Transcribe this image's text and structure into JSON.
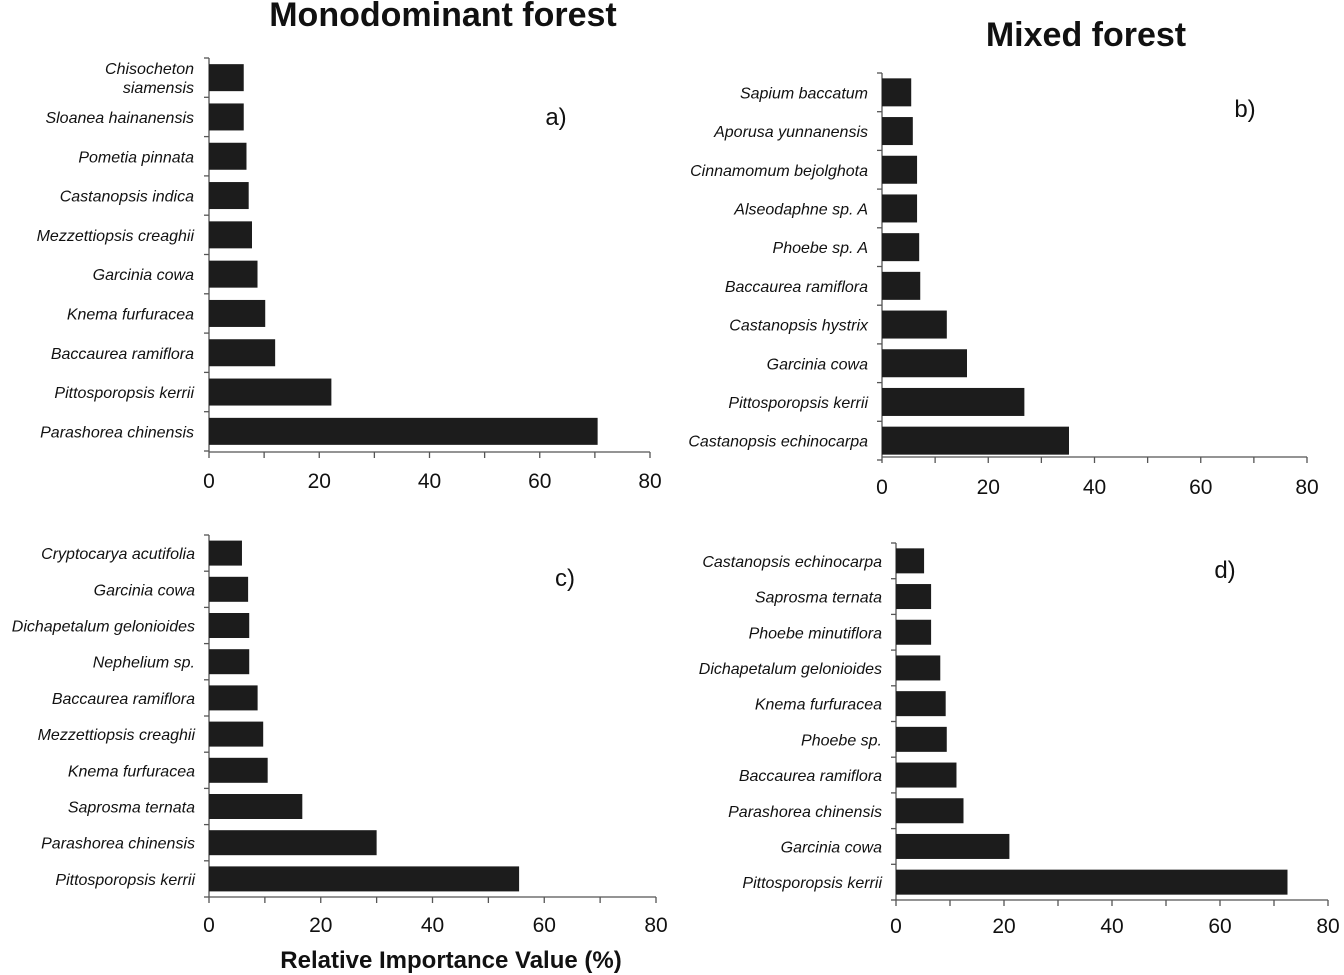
{
  "figure": {
    "column_titles": {
      "left": "Monodominant forest",
      "right": "Mixed forest"
    },
    "shared_xlabel": "Relative Importance Value (%)"
  },
  "chart_data": [
    {
      "type": "bar",
      "orientation": "horizontal",
      "panel": "a)",
      "group": "Monodominant forest",
      "xlabel": "",
      "xlim": [
        0,
        80
      ],
      "xticks": [
        0,
        20,
        40,
        60,
        80
      ],
      "categories": [
        [
          "Chisocheton",
          "siamensis"
        ],
        [
          "Sloanea hainanensis"
        ],
        [
          "Pometia pinnata"
        ],
        [
          "Castanopsis indica"
        ],
        [
          "Mezzettiopsis creaghii"
        ],
        [
          "Garcinia cowa"
        ],
        [
          "Knema furfuracea"
        ],
        [
          "Baccaurea ramiflora"
        ],
        [
          "Pittosporopsis kerrii"
        ],
        [
          "Parashorea chinensis"
        ]
      ],
      "values": [
        6.3,
        6.3,
        6.8,
        7.2,
        7.8,
        8.8,
        10.2,
        12.0,
        22.2,
        70.5
      ]
    },
    {
      "type": "bar",
      "orientation": "horizontal",
      "panel": "b)",
      "group": "Mixed forest",
      "xlabel": "",
      "xlim": [
        0,
        80
      ],
      "xticks": [
        0,
        20,
        40,
        60,
        80
      ],
      "categories": [
        [
          "Sapium baccatum"
        ],
        [
          "Aporusa yunnanensis"
        ],
        [
          "Cinnamomum bejolghota"
        ],
        [
          "Alseodaphne sp. A"
        ],
        [
          "Phoebe sp. A"
        ],
        [
          "Baccaurea ramiflora"
        ],
        [
          "Castanopsis hystrix"
        ],
        [
          "Garcinia cowa"
        ],
        [
          "Pittosporopsis kerrii"
        ],
        [
          "Castanopsis echinocarpa"
        ]
      ],
      "values": [
        5.5,
        5.8,
        6.6,
        6.6,
        7.0,
        7.2,
        12.2,
        16.0,
        26.8,
        35.2
      ]
    },
    {
      "type": "bar",
      "orientation": "horizontal",
      "panel": "c)",
      "group": "Monodominant forest",
      "xlabel": "Relative Importance Value (%)",
      "xlim": [
        0,
        80
      ],
      "xticks": [
        0,
        20,
        40,
        60,
        80
      ],
      "categories": [
        [
          "Cryptocarya acutifolia"
        ],
        [
          "Garcinia cowa"
        ],
        [
          "Dichapetalum gelonioides"
        ],
        [
          "Nephelium sp."
        ],
        [
          "Baccaurea ramiflora"
        ],
        [
          "Mezzettiopsis creaghii"
        ],
        [
          "Knema furfuracea"
        ],
        [
          "Saprosma ternata"
        ],
        [
          "Parashorea chinensis"
        ],
        [
          "Pittosporopsis kerrii"
        ]
      ],
      "values": [
        5.9,
        7.0,
        7.2,
        7.2,
        8.7,
        9.7,
        10.5,
        16.7,
        30.0,
        55.5
      ]
    },
    {
      "type": "bar",
      "orientation": "horizontal",
      "panel": "d)",
      "group": "Mixed forest",
      "xlabel": "",
      "xlim": [
        0,
        80
      ],
      "xticks": [
        0,
        20,
        40,
        60,
        80
      ],
      "categories": [
        [
          "Castanopsis echinocarpa"
        ],
        [
          "Saprosma ternata"
        ],
        [
          "Phoebe minutiflora"
        ],
        [
          "Dichapetalum gelonioides"
        ],
        [
          "Knema furfuracea"
        ],
        [
          "Phoebe sp."
        ],
        [
          "Baccaurea ramiflora"
        ],
        [
          "Parashorea chinensis"
        ],
        [
          "Garcinia cowa"
        ],
        [
          "Pittosporopsis kerrii"
        ]
      ],
      "values": [
        5.2,
        6.5,
        6.5,
        8.2,
        9.2,
        9.4,
        11.2,
        12.5,
        21.0,
        72.5
      ]
    }
  ]
}
